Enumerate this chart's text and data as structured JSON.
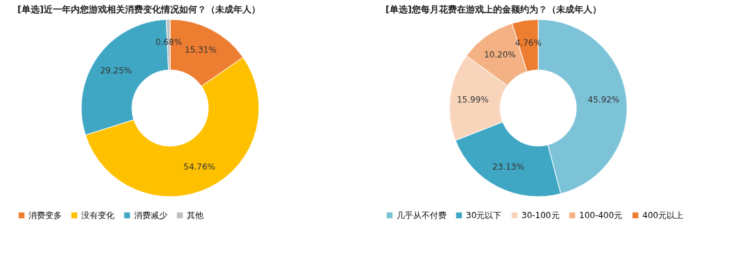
{
  "chart_data": [
    {
      "type": "donut",
      "title": "[单选]近一年内您游戏相关消费变化情况如何？（未成年人）",
      "categories": [
        "消费变多",
        "没有变化",
        "消费减少",
        "其他"
      ],
      "values": [
        15.31,
        54.76,
        29.25,
        0.68
      ],
      "colors": [
        "#ed7d31",
        "#ffc000",
        "#3fa7c4",
        "#bfbfbf"
      ],
      "value_labels": [
        "15.31%",
        "54.76%",
        "29.25%",
        "0.68%"
      ],
      "legend": "bottom"
    },
    {
      "type": "donut",
      "title": "[单选]您每月花费在游戏上的金额约为？（未成年人）",
      "categories": [
        "几乎从不付费",
        "30元以下",
        "30-100元",
        "100-400元",
        "400元以上"
      ],
      "values": [
        45.92,
        23.13,
        15.99,
        10.2,
        4.76
      ],
      "colors": [
        "#7dc3d8",
        "#3fa7c4",
        "#f8d4bb",
        "#f4b183",
        "#ed7d31"
      ],
      "value_labels": [
        "45.92%",
        "23.13%",
        "15.99%",
        "10.20%",
        "4.76%"
      ],
      "legend": "bottom"
    }
  ]
}
